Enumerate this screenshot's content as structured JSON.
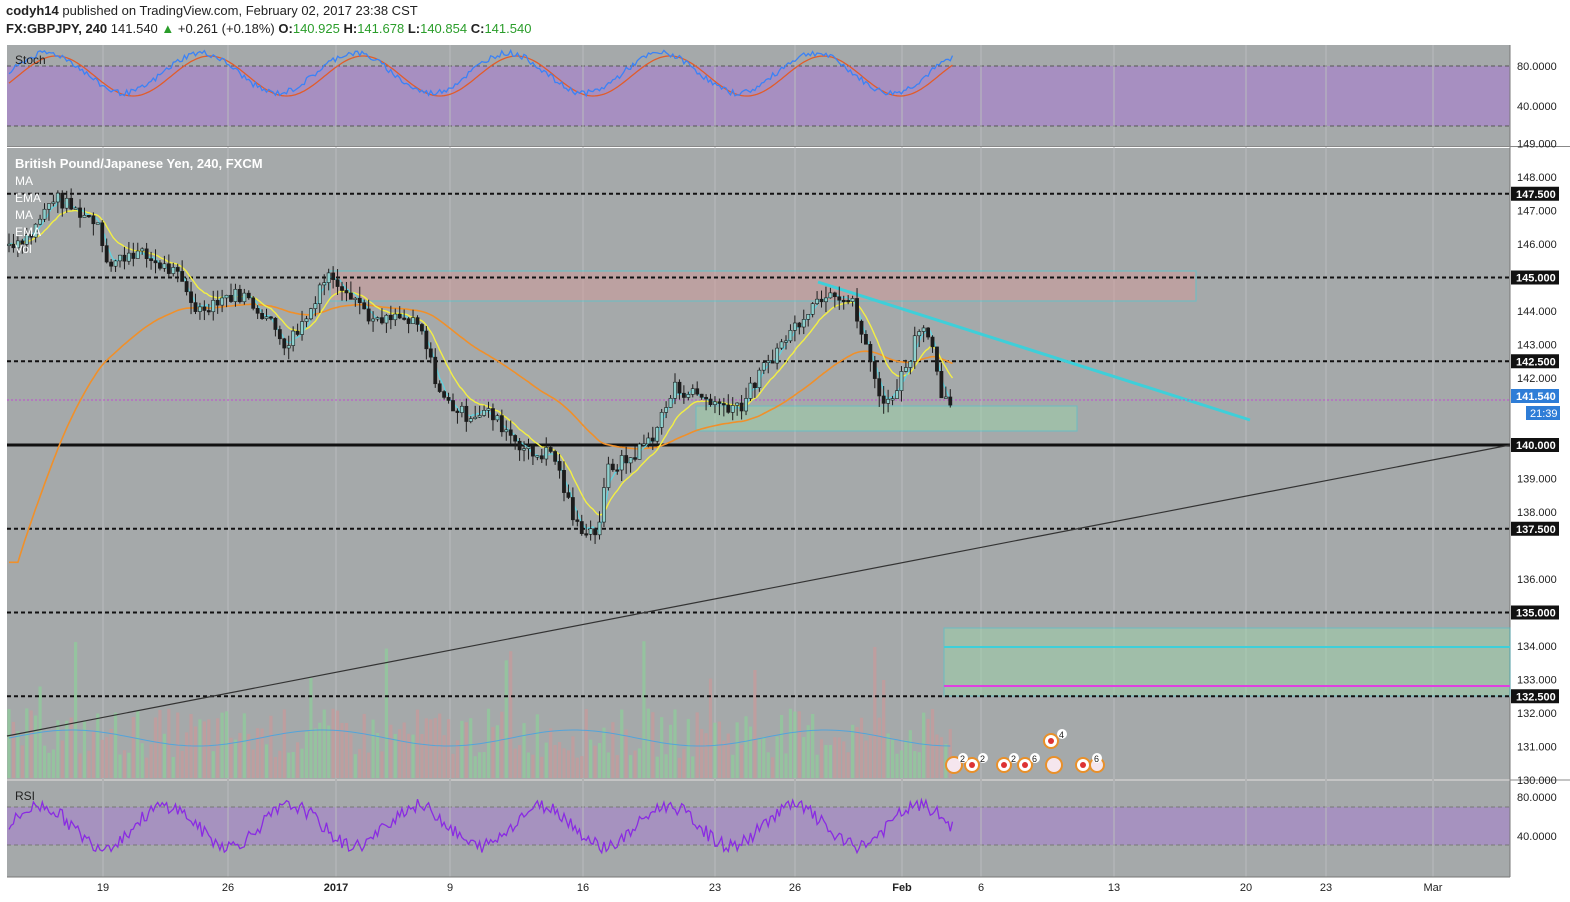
{
  "header": {
    "author": "codyh14",
    "published": "published on TradingView.com, February 02, 2017 23:38 CST",
    "symbol": "FX:GBPJPY, 240",
    "last": "141.540",
    "change": "+0.261 (+0.18%)",
    "o_label": "O:",
    "o_value": "140.925",
    "h_label": "H:",
    "h_value": "141.678",
    "l_label": "L:",
    "l_value": "140.854",
    "c_label": "C:",
    "c_value": "141.540"
  },
  "colors": {
    "background": "#a5a9aa",
    "band": "#a78bc6",
    "stoch_k": "#3b82f6",
    "stoch_d": "#e25c2a",
    "rsi": "#8a2be2",
    "ema_fast": "#5fd3e0",
    "ema_mid": "#f3ef43",
    "ma_slow": "#f0902a",
    "trend_line": "#3ecfd9",
    "candle_up": "#8ecfcc",
    "candle_down": "#1c1c1c",
    "resistance_zone": "#d49a9a",
    "support_zone": "#9ad8a8"
  },
  "panels": {
    "stoch_label": "Stoch",
    "rsi_label": "RSI",
    "main_title": "British Pound/Japanese Yen, 240, FXCM",
    "indicator_labels": [
      "MA",
      "EMA",
      "MA",
      "EMA",
      "Vol"
    ],
    "last_price_tag": "141.540",
    "countdown_tag": "21:39",
    "events": [
      {
        "text": "2"
      },
      {
        "text": "2"
      },
      {
        "text": "2"
      },
      {
        "text": "6"
      },
      {
        "text": "4"
      },
      {
        "text": "6"
      }
    ]
  },
  "chart_data": {
    "type": "candlestick",
    "title": "British Pound/Japanese Yen, 240, FXCM",
    "x_ticks": [
      "19",
      "26",
      "2017",
      "9",
      "16",
      "23",
      "26",
      "Feb",
      "6",
      "13",
      "20",
      "23",
      "Mar"
    ],
    "price_axis_ticks": [
      "149.000",
      "148.000",
      "147.000",
      "146.000",
      "145.000",
      "144.000",
      "143.000",
      "142.000",
      "139.000",
      "138.000",
      "136.000",
      "134.000",
      "133.000",
      "132.000",
      "131.000",
      "130.000"
    ],
    "horizontal_levels": [
      "147.500",
      "145.000",
      "142.500",
      "140.000",
      "137.500",
      "135.000",
      "132.500"
    ],
    "ylim": [
      129.8,
      149.3
    ],
    "series_approx_close": [
      [
        0,
        146.0
      ],
      [
        10,
        146.3
      ],
      [
        20,
        147.4
      ],
      [
        30,
        147.0
      ],
      [
        40,
        146.7
      ],
      [
        45,
        145.3
      ],
      [
        55,
        145.8
      ],
      [
        65,
        145.5
      ],
      [
        75,
        145.1
      ],
      [
        85,
        144.0
      ],
      [
        95,
        144.4
      ],
      [
        105,
        144.5
      ],
      [
        115,
        143.9
      ],
      [
        125,
        143.0
      ],
      [
        135,
        143.9
      ],
      [
        140,
        144.8
      ],
      [
        145,
        145.1
      ],
      [
        155,
        144.5
      ],
      [
        165,
        143.6
      ],
      [
        175,
        143.8
      ],
      [
        185,
        143.5
      ],
      [
        195,
        141.4
      ],
      [
        205,
        140.9
      ],
      [
        215,
        141.0
      ],
      [
        225,
        140.4
      ],
      [
        235,
        139.7
      ],
      [
        245,
        139.8
      ],
      [
        255,
        137.6
      ],
      [
        265,
        137.4
      ],
      [
        270,
        139.3
      ],
      [
        280,
        139.6
      ],
      [
        290,
        140.3
      ],
      [
        300,
        141.7
      ],
      [
        310,
        141.5
      ],
      [
        320,
        141.2
      ],
      [
        330,
        141.2
      ],
      [
        340,
        142.3
      ],
      [
        350,
        143.2
      ],
      [
        360,
        144.1
      ],
      [
        370,
        144.7
      ],
      [
        380,
        144.2
      ],
      [
        390,
        142.0
      ],
      [
        395,
        141.1
      ],
      [
        405,
        142.5
      ],
      [
        410,
        143.6
      ],
      [
        415,
        143.4
      ],
      [
        420,
        141.2
      ],
      [
        425,
        141.3
      ]
    ],
    "stoch_axis": [
      "80.0000",
      "40.0000"
    ],
    "rsi_axis": [
      "80.0000",
      "40.0000"
    ]
  }
}
